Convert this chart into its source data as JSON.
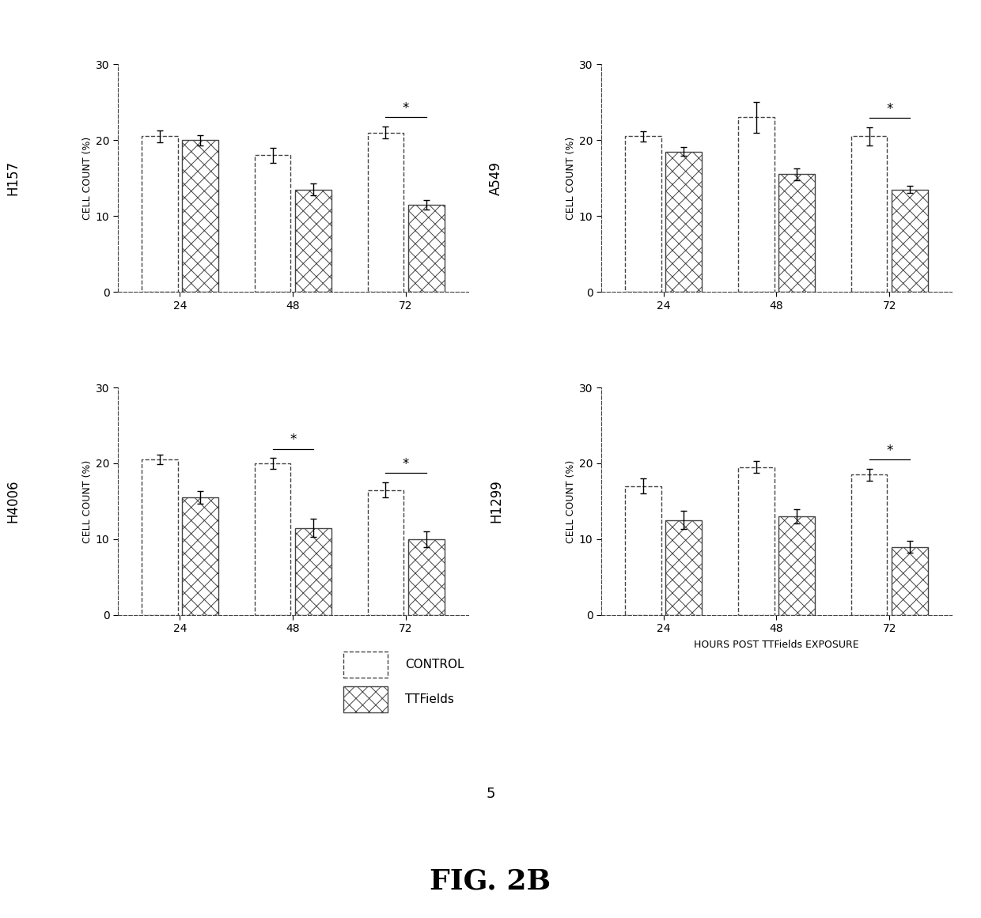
{
  "panels": [
    {
      "title": "H157",
      "ylabel": "CELL COUNT (%)",
      "timepoints": [
        24,
        48,
        72
      ],
      "control_values": [
        20.5,
        18.0,
        21.0
      ],
      "control_errors": [
        0.8,
        1.0,
        0.8
      ],
      "ttfields_values": [
        20.0,
        13.5,
        11.5
      ],
      "ttfields_errors": [
        0.7,
        0.8,
        0.6
      ],
      "sig_timepoints": [
        72
      ],
      "ylim": [
        0,
        30
      ],
      "yticks": [
        0,
        10,
        20,
        30
      ]
    },
    {
      "title": "A549",
      "ylabel": "CELL COUNT (%)",
      "timepoints": [
        24,
        48,
        72
      ],
      "control_values": [
        20.5,
        23.0,
        20.5
      ],
      "control_errors": [
        0.7,
        2.0,
        1.2
      ],
      "ttfields_values": [
        18.5,
        15.5,
        13.5
      ],
      "ttfields_errors": [
        0.6,
        0.8,
        0.5
      ],
      "sig_timepoints": [
        72
      ],
      "ylim": [
        0,
        30
      ],
      "yticks": [
        0,
        10,
        20,
        30
      ]
    },
    {
      "title": "H4006",
      "ylabel": "CELL COUNT (%)",
      "timepoints": [
        24,
        48,
        72
      ],
      "control_values": [
        20.5,
        20.0,
        16.5
      ],
      "control_errors": [
        0.6,
        0.7,
        1.0
      ],
      "ttfields_values": [
        15.5,
        11.5,
        10.0
      ],
      "ttfields_errors": [
        0.8,
        1.2,
        1.0
      ],
      "sig_timepoints": [
        48,
        72
      ],
      "ylim": [
        0,
        30
      ],
      "yticks": [
        0,
        10,
        20,
        30
      ]
    },
    {
      "title": "H1299",
      "ylabel": "CELL COUNT (%)",
      "timepoints": [
        24,
        48,
        72
      ],
      "control_values": [
        17.0,
        19.5,
        18.5
      ],
      "control_errors": [
        1.0,
        0.8,
        0.8
      ],
      "ttfields_values": [
        12.5,
        13.0,
        9.0
      ],
      "ttfields_errors": [
        1.2,
        0.9,
        0.8
      ],
      "sig_timepoints": [
        72
      ],
      "ylim": [
        0,
        30
      ],
      "yticks": [
        0,
        10,
        20,
        30
      ]
    }
  ],
  "xlabel_bottom": "HOURS POST TTFields EXPOSURE",
  "legend_labels": [
    "CONTROL",
    "TTFields"
  ],
  "bar_width": 0.32,
  "control_color": "white",
  "edge_color": "#444444",
  "figure_label_s": "5",
  "fig_label": "FIG. 2B",
  "background_color": "white"
}
